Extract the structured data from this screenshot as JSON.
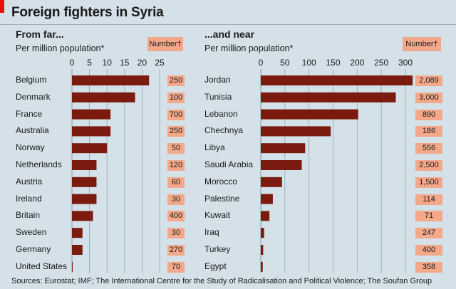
{
  "header": {
    "title": "Foreign fighters in Syria"
  },
  "footer": {
    "source": "Sources: Eurostat; IMF; The International Centre for the Study of  Radicalisation and Political Violence; The Soufan Group"
  },
  "colors": {
    "bar": "#7b1a0f",
    "background": "#d4e1e8",
    "number_box": "#f3a88a",
    "grid": "#8fa7b4",
    "accent": "#e3120b"
  },
  "chart_data": [
    {
      "type": "bar",
      "orientation": "horizontal",
      "title": "From far...",
      "subtitle": "Per million population*",
      "number_header": "Number†",
      "xlim": [
        0,
        25
      ],
      "xticks": [
        0,
        5,
        10,
        15,
        20,
        25
      ],
      "grid": true,
      "categories": [
        "Belgium",
        "Denmark",
        "France",
        "Australia",
        "Norway",
        "Netherlands",
        "Austria",
        "Ireland",
        "Britain",
        "Sweden",
        "Germany",
        "United States"
      ],
      "values": [
        22,
        18,
        11,
        11,
        10,
        7,
        7,
        7,
        6,
        3,
        3,
        0.2
      ],
      "numbers": [
        "250",
        "100",
        "700",
        "250",
        "50",
        "120",
        "60",
        "30",
        "400",
        "30",
        "270",
        "70"
      ]
    },
    {
      "type": "bar",
      "orientation": "horizontal",
      "title": "...and near",
      "subtitle": "Per million population*",
      "number_header": "Number†",
      "xlim": [
        0,
        300
      ],
      "xticks": [
        0,
        50,
        100,
        150,
        200,
        250,
        300
      ],
      "grid": true,
      "categories": [
        "Jordan",
        "Tunisia",
        "Lebanon",
        "Chechnya",
        "Libya",
        "Saudi Arabia",
        "Morocco",
        "Palestine",
        "Kuwait",
        "Iraq",
        "Turkey",
        "Egypt"
      ],
      "values": [
        315,
        280,
        202,
        145,
        92,
        85,
        44,
        25,
        18,
        7,
        5,
        4
      ],
      "numbers": [
        "2,089",
        "3,000",
        "890",
        "186",
        "556",
        "2,500",
        "1,500",
        "114",
        "71",
        "247",
        "400",
        "358"
      ]
    }
  ]
}
